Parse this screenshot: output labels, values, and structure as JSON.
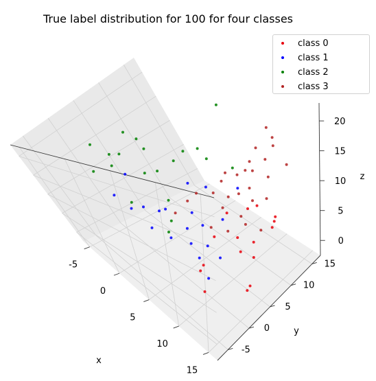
{
  "chart_data": {
    "type": "scatter",
    "projection": "3d",
    "title": "True label distribution for 100 for four classes",
    "xlabel": "x",
    "ylabel": "y",
    "zlabel": "z",
    "xlim": [
      -6,
      16.5
    ],
    "ylim": [
      -7.5,
      17
    ],
    "zlim": [
      -2.5,
      23
    ],
    "xticks": [
      -5,
      0,
      5,
      10,
      15
    ],
    "yticks": [
      -5,
      0,
      5,
      10,
      15
    ],
    "zticks": [
      0,
      5,
      10,
      15,
      20
    ],
    "legend_position": "top-right",
    "grid": true,
    "series": [
      {
        "name": "class 0",
        "color": "#e8000b",
        "points": [
          [
            12.0,
            -3.5,
            2.5
          ],
          [
            10.5,
            -2.0,
            4.0
          ],
          [
            14.5,
            2.5,
            0.5
          ],
          [
            13.0,
            5.0,
            -1.5
          ],
          [
            9.5,
            3.0,
            6.0
          ],
          [
            8.5,
            1.0,
            1.5
          ],
          [
            11.5,
            5.5,
            3.0
          ],
          [
            14.0,
            9.5,
            6.0
          ],
          [
            10.0,
            7.0,
            3.5
          ],
          [
            11.5,
            10.0,
            8.0
          ],
          [
            12.5,
            12.0,
            4.5
          ],
          [
            12.0,
            7.5,
            1.0
          ],
          [
            13.5,
            11.0,
            6.5
          ],
          [
            8.0,
            8.0,
            6.0
          ],
          [
            11.0,
            9.0,
            2.0
          ],
          [
            9.5,
            10.5,
            6.0
          ]
        ]
      },
      {
        "name": "class 1",
        "color": "#0000ff",
        "points": [
          [
            -3.0,
            1.5,
            3.0
          ],
          [
            -4.5,
            1.0,
            5.0
          ],
          [
            -1.5,
            2.5,
            4.0
          ],
          [
            -1.0,
            5.5,
            2.0
          ],
          [
            1.0,
            0.5,
            3.0
          ],
          [
            3.0,
            1.5,
            2.0
          ],
          [
            5.0,
            3.0,
            1.5
          ],
          [
            2.5,
            7.0,
            3.0
          ],
          [
            5.0,
            6.0,
            3.0
          ],
          [
            6.5,
            8.5,
            3.5
          ],
          [
            6.0,
            5.0,
            0.5
          ],
          [
            8.5,
            4.5,
            0.5
          ],
          [
            7.0,
            2.0,
            1.0
          ],
          [
            9.0,
            1.0,
            -0.5
          ],
          [
            4.0,
            4.0,
            3.0
          ],
          [
            4.5,
            9.0,
            8.0
          ],
          [
            8.0,
            11.0,
            8.5
          ],
          [
            -2.5,
            3.0,
            10.0
          ],
          [
            2.0,
            8.5,
            7.5
          ],
          [
            -0.5,
            4.0,
            3.0
          ]
        ]
      },
      {
        "name": "class 2",
        "color": "#008000",
        "points": [
          [
            -4.0,
            3.5,
            13.0
          ],
          [
            -3.5,
            2.5,
            11.5
          ],
          [
            -5.0,
            0.5,
            10.5
          ],
          [
            -2.5,
            6.0,
            17.0
          ],
          [
            -1.0,
            6.5,
            14.0
          ],
          [
            -4.5,
            2.0,
            16.0
          ],
          [
            -2.5,
            7.5,
            14.5
          ],
          [
            -4.0,
            5.0,
            12.0
          ],
          [
            -1.0,
            7.0,
            9.0
          ],
          [
            1.5,
            8.0,
            12.0
          ],
          [
            4.5,
            9.5,
            15.0
          ],
          [
            0.5,
            5.5,
            5.0
          ],
          [
            -3.0,
            6.5,
            7.5
          ],
          [
            6.0,
            13.0,
            21.5
          ],
          [
            5.0,
            10.0,
            13.0
          ],
          [
            3.5,
            8.0,
            15.0
          ],
          [
            1.0,
            3.0,
            0.5
          ],
          [
            7.0,
            12.0,
            11.0
          ],
          [
            -1.5,
            1.0,
            6.0
          ],
          [
            2.5,
            3.0,
            4.0
          ]
        ]
      },
      {
        "name": "class 3",
        "color": "#b22222",
        "points": [
          [
            9.0,
            9.5,
            5.0
          ],
          [
            8.0,
            11.0,
            7.5
          ],
          [
            7.5,
            12.0,
            10.0
          ],
          [
            10.0,
            12.0,
            12.0
          ],
          [
            11.0,
            13.5,
            13.5
          ],
          [
            9.5,
            11.5,
            9.0
          ],
          [
            6.0,
            10.5,
            9.0
          ],
          [
            5.5,
            9.0,
            7.5
          ],
          [
            8.5,
            12.5,
            11.0
          ],
          [
            10.5,
            10.5,
            8.0
          ],
          [
            11.5,
            13.0,
            11.0
          ],
          [
            7.0,
            8.5,
            6.0
          ],
          [
            6.5,
            11.0,
            10.5
          ],
          [
            4.0,
            7.5,
            7.5
          ],
          [
            3.0,
            6.5,
            6.0
          ],
          [
            9.0,
            13.0,
            12.5
          ],
          [
            12.0,
            14.0,
            16.0
          ],
          [
            12.0,
            11.5,
            8.5
          ],
          [
            10.0,
            9.0,
            4.5
          ],
          [
            11.0,
            15.5,
            16.0
          ],
          [
            13.0,
            15.0,
            12.5
          ],
          [
            8.0,
            7.5,
            3.0
          ],
          [
            6.0,
            6.5,
            3.0
          ],
          [
            7.0,
            10.0,
            7.0
          ],
          [
            9.5,
            14.0,
            14.5
          ],
          [
            1.5,
            5.0,
            3.5
          ],
          [
            12.5,
            9.0,
            5.0
          ],
          [
            10.0,
            16.0,
            17.0
          ]
        ]
      }
    ]
  }
}
